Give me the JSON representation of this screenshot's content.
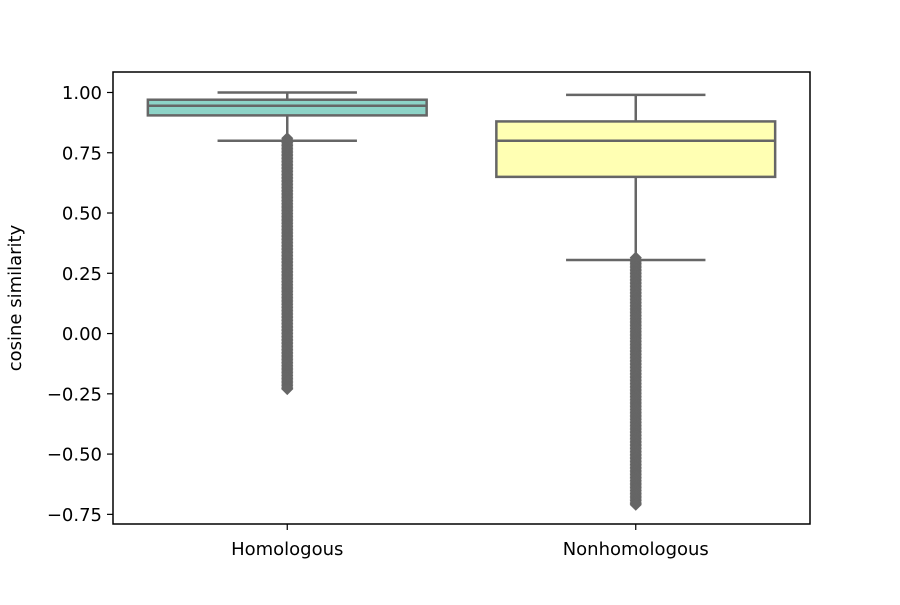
{
  "chart_data": {
    "type": "box",
    "title": "",
    "xlabel": "",
    "ylabel": "cosine similarity",
    "ylim": [
      -0.79,
      1.085
    ],
    "yticks": [
      1.0,
      0.75,
      0.5,
      0.25,
      0.0,
      -0.25,
      -0.5,
      -0.75
    ],
    "ytick_labels": [
      "1.00",
      "0.75",
      "0.50",
      "0.25",
      "0.00",
      "−0.25",
      "−0.50",
      "−0.75"
    ],
    "grid": false,
    "categories": [
      "Homologous",
      "Nonhomologous"
    ],
    "boxes": [
      {
        "name": "Homologous",
        "color": "#8dd3c7",
        "whisker_low": 0.8,
        "q1": 0.905,
        "median": 0.945,
        "q3": 0.97,
        "whisker_high": 1.0,
        "outlier_range": [
          -0.23,
          0.81
        ]
      },
      {
        "name": "Nonhomologous",
        "color": "#ffffb3",
        "whisker_low": 0.305,
        "q1": 0.65,
        "median": 0.8,
        "q3": 0.88,
        "whisker_high": 0.99,
        "outlier_range": [
          -0.71,
          0.315
        ]
      }
    ],
    "edge_color": "#666666",
    "outlier_marker": "diamond"
  }
}
